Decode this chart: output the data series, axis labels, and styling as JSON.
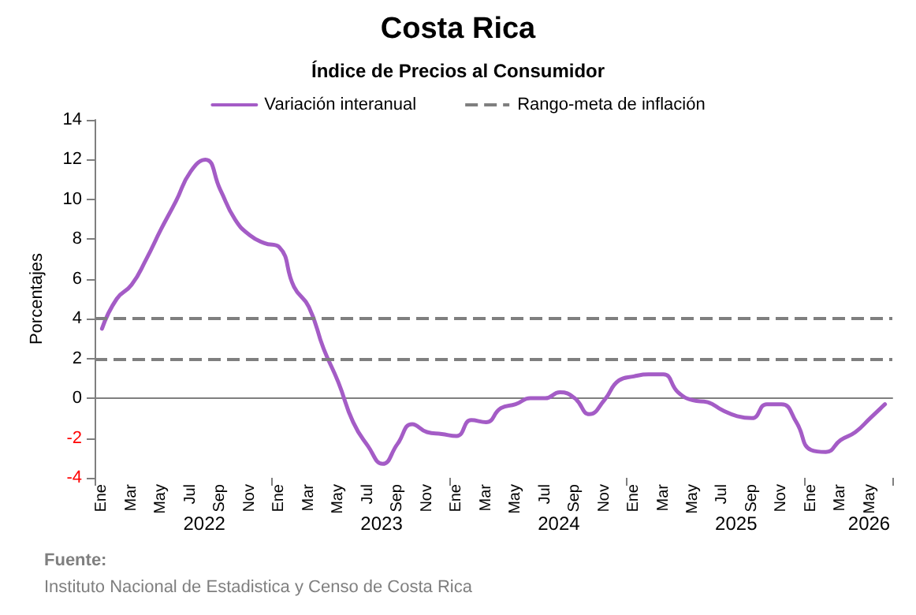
{
  "chart_data": {
    "type": "line",
    "title": "Costa Rica",
    "subtitle": "Índice de Precios al Consumidor",
    "ylabel": "Porcentajes",
    "categories": [
      "Ene",
      null,
      "Mar",
      null,
      "May",
      null,
      "Jul",
      null,
      "Sep",
      null,
      "Nov",
      null,
      "Ene",
      null,
      "Mar",
      null,
      "May",
      null,
      "Jul",
      null,
      "Sep",
      null,
      "Nov",
      null,
      "Ene",
      null,
      "Mar",
      null,
      "May",
      null,
      "Jul",
      null,
      "Sep",
      null,
      "Nov",
      null,
      "Ene",
      null,
      "Mar",
      null,
      "May",
      null,
      "Jul",
      null,
      "Sep",
      null,
      "Nov",
      null,
      "Ene",
      null,
      "Mar",
      null,
      "May",
      null
    ],
    "series": [
      {
        "name": "Variación interanual",
        "color": "#a45cc6",
        "values": [
          3.5,
          5.0,
          5.7,
          7.0,
          8.5,
          9.9,
          11.4,
          12.0,
          10.5,
          9.0,
          8.2,
          7.8,
          7.6,
          5.6,
          4.6,
          2.5,
          0.8,
          -1.2,
          -2.4,
          -3.3,
          -2.3,
          -1.3,
          -1.7,
          -1.8,
          -1.9,
          -1.1,
          -1.2,
          -0.5,
          -0.3,
          0.0,
          0.0,
          0.3,
          0.0,
          -0.8,
          -0.1,
          0.9,
          1.1,
          1.2,
          1.2,
          0.3,
          -0.1,
          -0.2,
          -0.6,
          -0.9,
          -1.0,
          -0.3,
          -0.3,
          -1.2,
          -2.6,
          -2.7,
          -2.1,
          -1.7,
          -1.0,
          -0.3
        ]
      }
    ],
    "ylim": [
      -4,
      14
    ],
    "yticks": [
      -4,
      -2,
      0,
      2,
      4,
      6,
      8,
      10,
      12,
      14
    ],
    "ref_lines": [
      {
        "axis": "y",
        "value": 4,
        "label": "Rango-meta de inflación",
        "color": "#7f7f7f",
        "line_style": "dashed"
      },
      {
        "axis": "y",
        "value": 2,
        "color": "#7f7f7f",
        "line_style": "dashed"
      }
    ],
    "annotations": [
      "2022",
      "2023",
      "2024",
      "2025",
      "2026",
      "Fuente:",
      "Instituto Nacional de Estadistica y Censo de Costa Rica"
    ],
    "grid": false,
    "legend": "top",
    "marker": "none",
    "line_style": "solid"
  }
}
